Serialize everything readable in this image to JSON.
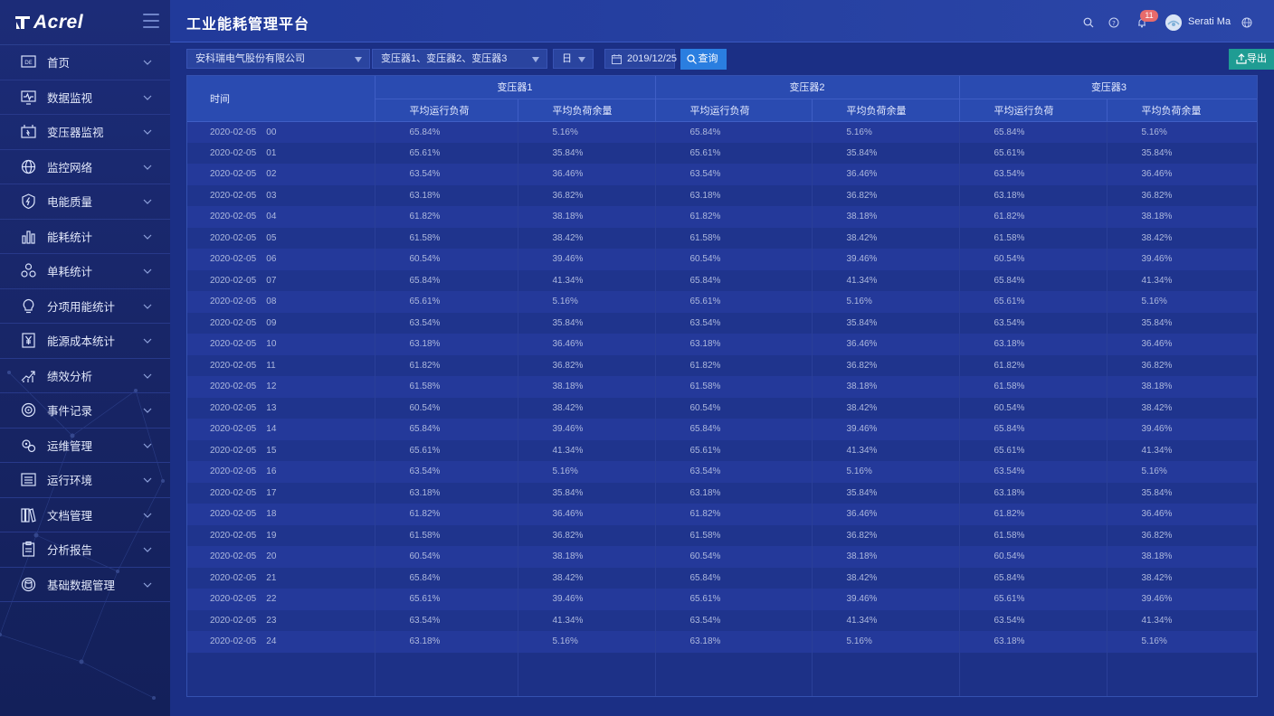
{
  "app": {
    "logo_text": "Acrel",
    "title": "工业能耗管理平台",
    "user_name": "Serati Ma",
    "notification_count": "11"
  },
  "sidebar": {
    "items": [
      {
        "label": "首页",
        "icon": "home-icon"
      },
      {
        "label": "数据监视",
        "icon": "monitor-icon"
      },
      {
        "label": "变压器监视",
        "icon": "transformer-icon"
      },
      {
        "label": "监控网络",
        "icon": "globe-icon"
      },
      {
        "label": "电能质量",
        "icon": "shield-bolt-icon"
      },
      {
        "label": "能耗统计",
        "icon": "bar-chart-icon"
      },
      {
        "label": "单耗统计",
        "icon": "network-nodes-icon"
      },
      {
        "label": "分项用能统计",
        "icon": "bulb-icon"
      },
      {
        "label": "能源成本统计",
        "icon": "yen-icon"
      },
      {
        "label": "绩效分析",
        "icon": "trend-icon"
      },
      {
        "label": "事件记录",
        "icon": "target-icon"
      },
      {
        "label": "运维管理",
        "icon": "gears-icon"
      },
      {
        "label": "运行环境",
        "icon": "list-icon"
      },
      {
        "label": "文档管理",
        "icon": "books-icon"
      },
      {
        "label": "分析报告",
        "icon": "clipboard-icon"
      },
      {
        "label": "基础数据管理",
        "icon": "database-icon"
      }
    ]
  },
  "toolbar": {
    "company_select": "安科瑞电气股份有限公司",
    "transformer_select": "变压器1、变压器2、变压器3",
    "period_select": "日",
    "date_value": "2019/12/25",
    "query_label": "查询",
    "export_label": "导出"
  },
  "table": {
    "time_header": "时间",
    "groups": [
      "变压器1",
      "变压器2",
      "变压器3"
    ],
    "sub_headers": [
      "平均运行负荷",
      "平均负荷余量"
    ],
    "rows": [
      {
        "date": "2020-02-05",
        "hour": "00",
        "load": "65.84%",
        "margin": "5.16%"
      },
      {
        "date": "2020-02-05",
        "hour": "01",
        "load": "65.61%",
        "margin": "35.84%"
      },
      {
        "date": "2020-02-05",
        "hour": "02",
        "load": "63.54%",
        "margin": "36.46%"
      },
      {
        "date": "2020-02-05",
        "hour": "03",
        "load": "63.18%",
        "margin": "36.82%"
      },
      {
        "date": "2020-02-05",
        "hour": "04",
        "load": "61.82%",
        "margin": "38.18%"
      },
      {
        "date": "2020-02-05",
        "hour": "05",
        "load": "61.58%",
        "margin": "38.42%"
      },
      {
        "date": "2020-02-05",
        "hour": "06",
        "load": "60.54%",
        "margin": "39.46%"
      },
      {
        "date": "2020-02-05",
        "hour": "07",
        "load": "65.84%",
        "margin": "41.34%"
      },
      {
        "date": "2020-02-05",
        "hour": "08",
        "load": "65.61%",
        "margin": "5.16%"
      },
      {
        "date": "2020-02-05",
        "hour": "09",
        "load": "63.54%",
        "margin": "35.84%"
      },
      {
        "date": "2020-02-05",
        "hour": "10",
        "load": "63.18%",
        "margin": "36.46%"
      },
      {
        "date": "2020-02-05",
        "hour": "11",
        "load": "61.82%",
        "margin": "36.82%"
      },
      {
        "date": "2020-02-05",
        "hour": "12",
        "load": "61.58%",
        "margin": "38.18%"
      },
      {
        "date": "2020-02-05",
        "hour": "13",
        "load": "60.54%",
        "margin": "38.42%"
      },
      {
        "date": "2020-02-05",
        "hour": "14",
        "load": "65.84%",
        "margin": "39.46%"
      },
      {
        "date": "2020-02-05",
        "hour": "15",
        "load": "65.61%",
        "margin": "41.34%"
      },
      {
        "date": "2020-02-05",
        "hour": "16",
        "load": "63.54%",
        "margin": "5.16%"
      },
      {
        "date": "2020-02-05",
        "hour": "17",
        "load": "63.18%",
        "margin": "35.84%"
      },
      {
        "date": "2020-02-05",
        "hour": "18",
        "load": "61.82%",
        "margin": "36.46%"
      },
      {
        "date": "2020-02-05",
        "hour": "19",
        "load": "61.58%",
        "margin": "36.82%"
      },
      {
        "date": "2020-02-05",
        "hour": "20",
        "load": "60.54%",
        "margin": "38.18%"
      },
      {
        "date": "2020-02-05",
        "hour": "21",
        "load": "65.84%",
        "margin": "38.42%"
      },
      {
        "date": "2020-02-05",
        "hour": "22",
        "load": "65.61%",
        "margin": "39.46%"
      },
      {
        "date": "2020-02-05",
        "hour": "23",
        "load": "63.54%",
        "margin": "41.34%"
      },
      {
        "date": "2020-02-05",
        "hour": "24",
        "load": "63.18%",
        "margin": "5.16%"
      }
    ]
  },
  "colors": {
    "query_button": "#2a7ee0",
    "export_button": "#1f9c93",
    "badge": "#e86b6b",
    "header_bg": "#2a4bb1"
  }
}
